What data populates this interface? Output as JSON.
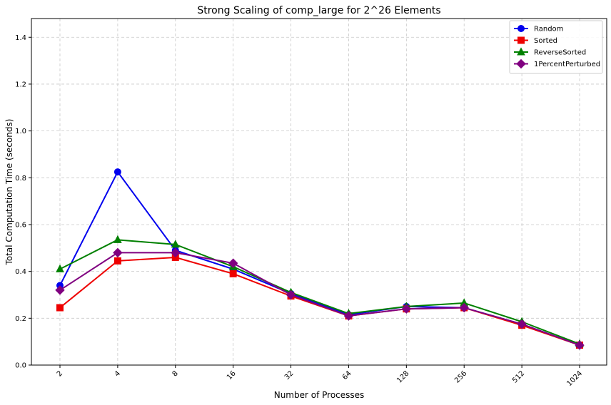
{
  "chart_data": {
    "type": "line",
    "title": "Strong Scaling of comp_large for 2^26 Elements",
    "xlabel": "Number of Processes",
    "ylabel": "Total Computation Time (seconds)",
    "categories": [
      "2",
      "4",
      "8",
      "16",
      "32",
      "64",
      "128",
      "256",
      "512",
      "1024"
    ],
    "ylim": [
      0,
      1.48
    ],
    "yticks": [
      "0.0",
      "0.2",
      "0.4",
      "0.6",
      "0.8",
      "1.0",
      "1.2",
      "1.4"
    ],
    "grid": true,
    "legend_position": "top-right",
    "series": [
      {
        "name": "Random",
        "color": "#0000ee",
        "marker": "circle",
        "values": [
          0.34,
          0.825,
          0.49,
          0.41,
          0.305,
          0.215,
          0.25,
          0.245,
          0.175,
          0.085
        ]
      },
      {
        "name": "Sorted",
        "color": "#ee0000",
        "marker": "square",
        "values": [
          0.245,
          0.445,
          0.46,
          0.39,
          0.295,
          0.21,
          0.24,
          0.245,
          0.17,
          0.085
        ]
      },
      {
        "name": "ReverseSorted",
        "color": "#008000",
        "marker": "triangle",
        "values": [
          0.41,
          0.535,
          0.515,
          0.42,
          0.31,
          0.22,
          0.25,
          0.265,
          0.185,
          0.09
        ]
      },
      {
        "name": "1PercentPerturbed",
        "color": "#800080",
        "marker": "diamond",
        "values": [
          0.32,
          0.48,
          0.48,
          0.435,
          0.3,
          0.21,
          0.24,
          0.245,
          0.175,
          0.085
        ]
      }
    ]
  }
}
